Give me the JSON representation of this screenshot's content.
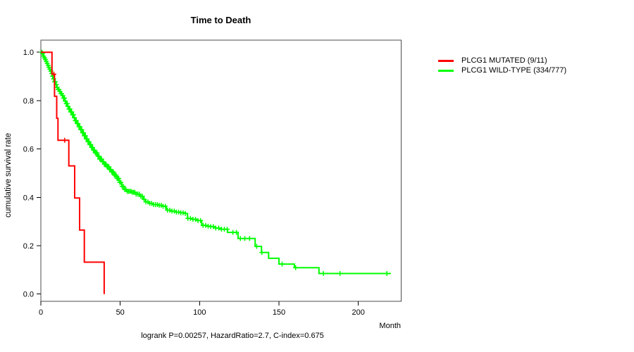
{
  "chart_data": {
    "type": "line",
    "subtype": "kaplan-meier-step",
    "title": "Time to Death",
    "xlabel": "Month",
    "ylabel": "cumulative survival rate",
    "footnote": "logrank P=0.00257, HazardRatio=2.7, C-index=0.675",
    "xlim": [
      0,
      227
    ],
    "ylim": [
      -0.03,
      1.05
    ],
    "grid": false,
    "legend_position": "outside-right",
    "axis_color": "#000000",
    "box_color": "#4d4d4d",
    "x_ticks": {
      "values": [
        0,
        50,
        100,
        150,
        200
      ],
      "labels": [
        "0",
        "50",
        "100",
        "150",
        "200"
      ]
    },
    "y_ticks": {
      "values": [
        0,
        0.2,
        0.4,
        0.6,
        0.8,
        1.0
      ],
      "labels": [
        "0.0",
        "0.2",
        "0.4",
        "0.6",
        "0.8",
        "1.0"
      ]
    },
    "series": [
      {
        "id": "mutated",
        "name": "PLCG1 MUTATED (9/11)",
        "color": "#ff0000",
        "points": [
          [
            0,
            1
          ],
          [
            7,
            0.909
          ],
          [
            8.6,
            0.818
          ],
          [
            10,
            0.727
          ],
          [
            10.8,
            0.636
          ],
          [
            17.6,
            0.53
          ],
          [
            21.3,
            0.397
          ],
          [
            24.4,
            0.265
          ],
          [
            27.4,
            0.132
          ],
          [
            39.9,
            0
          ]
        ],
        "censor_months": [
          8.2,
          15
        ]
      },
      {
        "id": "wild-type",
        "name": "PLCG1 WILD-TYPE (334/777)",
        "color": "#00ff00",
        "points": [
          [
            0,
            1
          ],
          [
            0.7,
            0.995
          ],
          [
            1.2,
            0.99
          ],
          [
            1.7,
            0.984
          ],
          [
            2.2,
            0.977
          ],
          [
            2.7,
            0.97
          ],
          [
            3.2,
            0.962
          ],
          [
            3.7,
            0.954
          ],
          [
            4.2,
            0.946
          ],
          [
            4.7,
            0.938
          ],
          [
            5.2,
            0.93
          ],
          [
            5.9,
            0.922
          ],
          [
            6.5,
            0.912
          ],
          [
            7.2,
            0.901
          ],
          [
            7.9,
            0.89
          ],
          [
            8.6,
            0.878
          ],
          [
            9.3,
            0.866
          ],
          [
            10,
            0.855
          ],
          [
            10.8,
            0.846
          ],
          [
            11.6,
            0.838
          ],
          [
            12.4,
            0.829
          ],
          [
            13.3,
            0.821
          ],
          [
            14.1,
            0.81
          ],
          [
            15,
            0.798
          ],
          [
            15.9,
            0.787
          ],
          [
            16.8,
            0.776
          ],
          [
            17.7,
            0.765
          ],
          [
            18.7,
            0.753
          ],
          [
            19.7,
            0.741
          ],
          [
            20.7,
            0.729
          ],
          [
            21.7,
            0.717
          ],
          [
            22.7,
            0.705
          ],
          [
            23.8,
            0.692
          ],
          [
            24.9,
            0.68
          ],
          [
            26,
            0.667
          ],
          [
            27,
            0.655
          ],
          [
            28.1,
            0.642
          ],
          [
            29.2,
            0.63
          ],
          [
            30.4,
            0.618
          ],
          [
            31.6,
            0.606
          ],
          [
            32.9,
            0.595
          ],
          [
            34.2,
            0.584
          ],
          [
            35.5,
            0.57
          ],
          [
            36.9,
            0.558
          ],
          [
            38.4,
            0.547
          ],
          [
            39.9,
            0.537
          ],
          [
            41.4,
            0.526
          ],
          [
            43,
            0.515
          ],
          [
            44.6,
            0.505
          ],
          [
            46.2,
            0.492
          ],
          [
            47.8,
            0.478
          ],
          [
            49.4,
            0.462
          ],
          [
            51,
            0.445
          ],
          [
            52.6,
            0.432
          ],
          [
            54.2,
            0.425
          ],
          [
            57,
            0.421
          ],
          [
            60,
            0.413
          ],
          [
            62.5,
            0.404
          ],
          [
            64.5,
            0.392
          ],
          [
            66,
            0.381
          ],
          [
            68.5,
            0.375
          ],
          [
            71,
            0.37
          ],
          [
            74,
            0.367
          ],
          [
            77,
            0.363
          ],
          [
            79,
            0.347
          ],
          [
            82,
            0.343
          ],
          [
            85,
            0.339
          ],
          [
            88,
            0.336
          ],
          [
            91,
            0.333
          ],
          [
            92.4,
            0.313
          ],
          [
            95,
            0.309
          ],
          [
            98,
            0.304
          ],
          [
            101.3,
            0.284
          ],
          [
            104,
            0.281
          ],
          [
            107,
            0.279
          ],
          [
            110,
            0.273
          ],
          [
            113,
            0.268
          ],
          [
            117.6,
            0.255
          ],
          [
            124.2,
            0.23
          ],
          [
            135,
            0.197
          ],
          [
            139,
            0.172
          ],
          [
            143.5,
            0.148
          ],
          [
            150,
            0.124
          ],
          [
            159.7,
            0.109
          ],
          [
            175.2,
            0.085
          ],
          [
            220.5,
            0.085
          ]
        ],
        "censor_months": [
          0.6,
          1.1,
          1.7,
          2.3,
          2.9,
          3.4,
          4.0,
          4.6,
          5.1,
          5.7,
          6.3,
          6.9,
          7.4,
          8.0,
          8.6,
          9.1,
          9.7,
          10.3,
          10.9,
          11.4,
          12.0,
          12.6,
          13.1,
          13.7,
          14.3,
          14.9,
          15.4,
          16.0,
          16.6,
          17.1,
          17.7,
          18.3,
          18.9,
          19.4,
          20.0,
          20.6,
          21.1,
          21.7,
          22.3,
          22.9,
          23.4,
          24.0,
          24.6,
          25.1,
          25.7,
          26.3,
          26.9,
          27.4,
          28.0,
          28.6,
          29.1,
          29.7,
          30.3,
          30.9,
          31.4,
          32.0,
          32.6,
          33.1,
          33.7,
          34.3,
          34.9,
          35.4,
          36.0,
          36.6,
          37.1,
          37.7,
          38.3,
          38.9,
          39.4,
          40.0,
          40.6,
          41.1,
          41.7,
          42.3,
          42.9,
          43.4,
          44.0,
          44.6,
          45.1,
          45.7,
          46.3,
          46.9,
          47.4,
          48.0,
          48.6,
          49.1,
          49.7,
          50.4,
          51.2,
          52.0,
          52.8,
          53.6,
          54.4,
          55.2,
          56.0,
          56.8,
          57.6,
          58.4,
          59.2,
          60.0,
          61.0,
          62.0,
          63.0,
          64.0,
          65.0,
          66.2,
          67.4,
          68.6,
          69.8,
          71.0,
          72.2,
          73.4,
          74.6,
          75.8,
          77.0,
          78.4,
          79.8,
          81.2,
          82.6,
          84.0,
          85.4,
          86.8,
          88.2,
          89.6,
          91.0,
          92.6,
          94.2,
          95.8,
          97.4,
          99.0,
          100.6,
          102.2,
          103.8,
          105.4,
          107.0,
          108.6,
          110.2,
          112.0,
          113.8,
          115.6,
          117.4,
          121.0,
          123.2,
          125.7,
          128.5,
          131.5,
          136.0,
          139.2,
          152.0,
          160.5,
          178.0,
          188.5,
          218.0
        ]
      }
    ]
  }
}
